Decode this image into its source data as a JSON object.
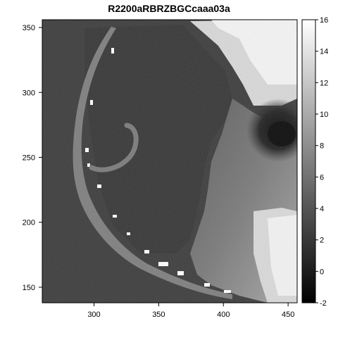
{
  "chart_data": {
    "type": "heatmap",
    "title": "R2200aRBRZBGCcaaa03a",
    "xlabel": "",
    "ylabel": "",
    "xlim": [
      260,
      457
    ],
    "ylim": [
      138,
      356
    ],
    "x_ticks": [
      300,
      350,
      400,
      450
    ],
    "y_ticks": [
      150,
      200,
      250,
      300,
      350
    ],
    "colorbar": {
      "min": -2,
      "max": 16,
      "ticks": [
        -2,
        0,
        2,
        4,
        6,
        8,
        10,
        12,
        14,
        16
      ],
      "colormap": "grayscale (black = low, white = high)"
    },
    "grid": false,
    "legend": "none"
  },
  "colors": {
    "background_field": "#3c3c3c",
    "low": "#000000",
    "high": "#ffffff"
  }
}
